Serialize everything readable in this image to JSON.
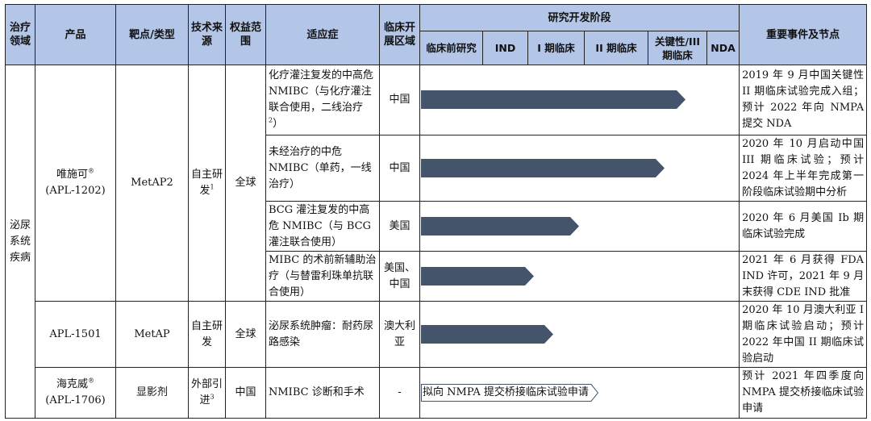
{
  "headers": {
    "area": "治疗领域",
    "product": "产品",
    "target": "靶点/类型",
    "tech": "技术来源",
    "rights": "权益范围",
    "indication": "适应症",
    "region": "临床开展区域",
    "rd_stage": "研究开发阶段",
    "phases": [
      "临床前研究",
      "IND",
      "I 期临床",
      "II 期临床",
      "关键性/III 期临床",
      "NDA"
    ],
    "events": "重要事件及节点"
  },
  "therapy_area": "泌尿系统疾病",
  "products": [
    {
      "name": "唯施可",
      "name_sup": "®",
      "code": "(APL-1202)",
      "target": "MetAP2",
      "tech": "自主研发",
      "tech_note": "1",
      "rights": "全球",
      "rows": [
        {
          "indication": "化疗灌注复发的中高危 NMIBC（与化疗灌注联合使用，二线治疗",
          "indication_note": "2",
          "indication_end": "）",
          "region": "中国",
          "progress": 0.83,
          "event": "2019 年 9 月中国关键性 II 期临床试验完成入组；预计 2022 年向 NMPA 提交 NDA"
        },
        {
          "indication": "未经治疗的中危 NMIBC（单药，一线治疗）",
          "region": "中国",
          "progress": 0.765,
          "event": "2020 年 10 月启动中国 III 期临床试验；预计 2024 年上半年完成第一阶段临床试验期中分析"
        },
        {
          "indication": "BCG 灌注复发的中高危 NMIBC（与 BCG 灌注联合使用）",
          "region": "美国",
          "progress": 0.495,
          "event": "2020 年 6 月美国 Ib 期临床试验完成"
        },
        {
          "indication": "MIBC 的术前新辅助治疗（与替雷利珠单抗联合使用）",
          "region": "美国、中国",
          "progress": 0.355,
          "event": "2021 年 6 月获得 FDA IND 许可，2021 年 9 月末获得 CDE IND 批准"
        }
      ]
    },
    {
      "name": "APL-1501",
      "target": "MetAP",
      "tech": "自主研发",
      "rights": "全球",
      "rows": [
        {
          "indication": "泌尿系统肿瘤：耐药尿路感染",
          "region": "澳大利亚",
          "progress": 0.415,
          "event": "2020 年 10 月澳大利亚 I 期临床试验启动；预计 2022 年中国 II 期临床试验启动"
        }
      ]
    },
    {
      "name": "海克威",
      "name_sup": "®",
      "code": "(APL-1706)",
      "target": "显影剂",
      "tech": "外部引进",
      "tech_note": "3",
      "rights": "中国",
      "rows": [
        {
          "indication": "NMIBC 诊断和手术",
          "region": "-",
          "planned_label": "拟向 NMPA 提交桥接临床试验申请",
          "event": "预计 2021 年四季度向 NMPA 提交桥接临床试验申请"
        }
      ]
    }
  ]
}
